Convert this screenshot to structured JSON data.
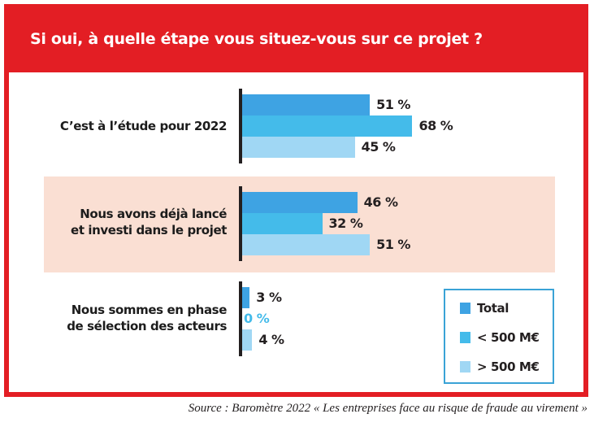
{
  "title": "Si oui, à quelle étape vous situez-vous sur ce projet ?",
  "source": "Source : Baromètre 2022 « Les entreprises face au risque de fraude au virement »",
  "colors": {
    "header": "#e31e24",
    "band": "#fadfd3",
    "series": [
      "#3ea3e3",
      "#44bbea",
      "#a0d7f4"
    ],
    "zero_label": "#44bbea"
  },
  "chart_data": {
    "type": "bar",
    "orientation": "horizontal",
    "title": "Si oui, à quelle étape vous situez-vous sur ce projet ?",
    "categories": [
      "C’est à l’étude pour 2022",
      "Nous avons déjà lancé et investi dans le projet",
      "Nous sommes en phase de sélection des acteurs"
    ],
    "category_lines": [
      [
        "C’est à l’étude pour 2022"
      ],
      [
        "Nous avons déjà lancé",
        "et investi dans le projet"
      ],
      [
        "Nous sommes en phase",
        "de sélection des acteurs"
      ]
    ],
    "series": [
      {
        "name": "Total",
        "values": [
          51,
          46,
          3
        ]
      },
      {
        "name": "< 500 M€",
        "values": [
          68,
          32,
          0
        ]
      },
      {
        "name": "> 500 M€",
        "values": [
          45,
          51,
          4
        ]
      }
    ],
    "value_labels": [
      [
        "51 %",
        "46 %",
        "3 %"
      ],
      [
        "68 %",
        "32 %",
        "0 %"
      ],
      [
        "45 %",
        "51 %",
        "4 %"
      ]
    ],
    "unit": "%",
    "xlim": [
      0,
      100
    ],
    "grid": false,
    "legend": {
      "position": "bottom-right",
      "entries": [
        "Total",
        "< 500 M€",
        "> 500 M€"
      ]
    },
    "xlabel": "",
    "ylabel": ""
  }
}
